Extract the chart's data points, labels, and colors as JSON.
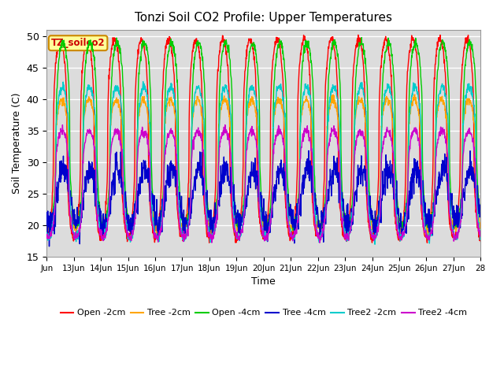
{
  "title": "Tonzi Soil CO2 Profile: Upper Temperatures",
  "ylabel": "Soil Temperature (C)",
  "xlabel": "Time",
  "ylim": [
    15,
    51
  ],
  "yticks": [
    15,
    20,
    25,
    30,
    35,
    40,
    45,
    50
  ],
  "background_color": "#ffffff",
  "plot_bg_color": "#dcdcdc",
  "grid_color": "#ffffff",
  "series": [
    {
      "label": "Open -2cm",
      "color": "#ff0000",
      "peak": 49.5,
      "trough": 18.0,
      "phase": 0.0,
      "noise": 0.35
    },
    {
      "label": "Tree -2cm",
      "color": "#ffa500",
      "peak": 40.0,
      "trough": 19.5,
      "phase": 0.06,
      "noise": 0.35
    },
    {
      "label": "Open -4cm",
      "color": "#00cc00",
      "peak": 49.0,
      "trough": 20.0,
      "phase": 0.1,
      "noise": 0.35
    },
    {
      "label": "Tree -4cm",
      "color": "#0000cc",
      "peak": 29.0,
      "trough": 20.0,
      "phase": 0.12,
      "noise": 1.2
    },
    {
      "label": "Tree2 -2cm",
      "color": "#00cccc",
      "peak": 42.0,
      "trough": 18.0,
      "phase": 0.08,
      "noise": 0.35
    },
    {
      "label": "Tree2 -4cm",
      "color": "#cc00cc",
      "peak": 35.0,
      "trough": 18.0,
      "phase": 0.07,
      "noise": 0.35
    }
  ],
  "xtick_labels": [
    "Jun",
    "13Jun",
    "14Jun",
    "15Jun",
    "16Jun",
    "17Jun",
    "18Jun",
    "19Jun",
    "20Jun",
    "21Jun",
    "22Jun",
    "23Jun",
    "24Jun",
    "25Jun",
    "26Jun",
    "27Jun",
    "28"
  ],
  "n_days": 16,
  "pts_per_day": 96,
  "tag_text": "TZ_soilco2",
  "tag_bg": "#ffff99",
  "tag_border": "#cc8800",
  "linewidth": 1.0,
  "figsize": [
    6.4,
    4.8
  ],
  "dpi": 100
}
